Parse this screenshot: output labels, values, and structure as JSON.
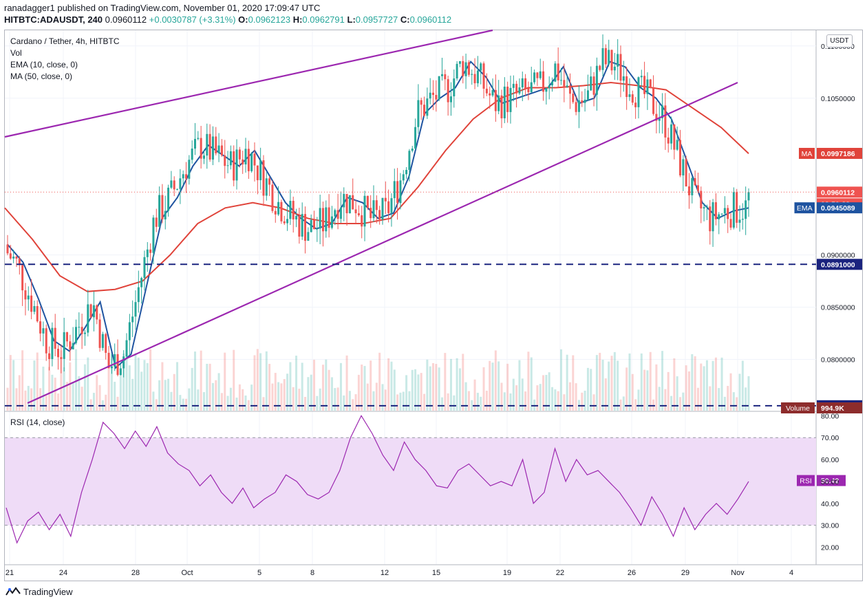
{
  "header": {
    "publisher_line": "ranadagger1 published on TradingView.com, November 01, 2020 17:09:47 UTC",
    "symbol": "HITBTC:ADAUSDT, 240",
    "price": "0.0960112",
    "change": "+0.0030787 (+3.31%)",
    "open_label": "O:",
    "open": "0.0962123",
    "high_label": "H:",
    "high": "0.0962791",
    "low_label": "L:",
    "low": "0.0957727",
    "close_label": "C:",
    "close": "0.0960112"
  },
  "legend": {
    "title": "Cardano / Tether, 4h, HITBTC",
    "vol": "Vol",
    "ema": "EMA (10, close, 0)",
    "ma": "MA (50, close, 0)",
    "rsi": "RSI (14, close)"
  },
  "currency_button": "USDT",
  "colors": {
    "up": "#26a69a",
    "down": "#ef5350",
    "ema": "#1e53a0",
    "ma": "#e0433a",
    "trendline": "#9c27b0",
    "support": "#1a237e",
    "rsi_line": "#9c27b0",
    "rsi_band": "#efdcf7",
    "grid": "#f0f3fa"
  },
  "footer": {
    "brand": "TradingView",
    "logo_icon": "tradingview-logo-icon"
  },
  "chart_data": [
    {
      "type": "candlestick",
      "title": "Cardano / Tether, 4h, HITBTC",
      "y_scale": [
        0.0751,
        0.1115
      ],
      "y_ticks": [
        "0.1100000",
        "0.1050000",
        "0.0900000",
        "0.0850000",
        "0.0800000"
      ],
      "x_ticks": [
        "21",
        "24",
        "28",
        "Oct",
        "5",
        "8",
        "12",
        "15",
        "19",
        "22",
        "26",
        "29",
        "Nov",
        "4"
      ],
      "price_labels": [
        {
          "name": "MA",
          "value": "0.0997186",
          "color": "#e0433a"
        },
        {
          "name": "",
          "value": "0.0960112",
          "color": "#ef5350"
        },
        {
          "name": "",
          "value": "02:50:23",
          "color": "#ef5350"
        },
        {
          "name": "EMA",
          "value": "0.0945089",
          "color": "#1e53a0"
        },
        {
          "name": "",
          "value": "0.0891000",
          "color": "#1a237e"
        },
        {
          "name": "",
          "value": "0.0755701",
          "color": "#1a237e"
        },
        {
          "name": "Volume",
          "value": "994.9K",
          "color": "#8d2c2c"
        }
      ],
      "support_levels": [
        0.0891,
        0.07557
      ],
      "trendlines": [
        {
          "name": "upper channel",
          "from": [
            "Sep 20",
            0.1044
          ],
          "to": [
            "Oct 17",
            0.1195
          ]
        },
        {
          "name": "lower channel",
          "from": [
            "Sep 21",
            0.0752
          ],
          "to": [
            "Oct 31",
            0.1103
          ]
        }
      ],
      "ema_path": [
        0.091,
        0.0893,
        0.0858,
        0.0818,
        0.0808,
        0.083,
        0.0855,
        0.0792,
        0.0805,
        0.087,
        0.0935,
        0.0955,
        0.0985,
        0.1005,
        0.0995,
        0.0985,
        0.1,
        0.0975,
        0.095,
        0.0935,
        0.0925,
        0.093,
        0.0955,
        0.095,
        0.0935,
        0.094,
        0.0975,
        0.1035,
        0.105,
        0.106,
        0.1085,
        0.107,
        0.1045,
        0.105,
        0.1055,
        0.106,
        0.108,
        0.1045,
        0.105,
        0.1085,
        0.108,
        0.106,
        0.105,
        0.103,
        0.099,
        0.095,
        0.0935,
        0.0942,
        0.0945
      ],
      "ma_path": [
        0.0945,
        0.0915,
        0.088,
        0.0865,
        0.0867,
        0.0875,
        0.09,
        0.093,
        0.0945,
        0.095,
        0.0945,
        0.0935,
        0.093,
        0.093,
        0.0935,
        0.0965,
        0.1,
        0.103,
        0.105,
        0.106,
        0.106,
        0.1062,
        0.1065,
        0.1062,
        0.1058,
        0.104,
        0.1022,
        0.0997
      ],
      "last_price": 0.0960112,
      "ema_last": 0.0945089,
      "ma_last": 0.0997186
    },
    {
      "type": "line",
      "title": "RSI (14, close)",
      "ylim": [
        12,
        82
      ],
      "y_ticks": [
        "80.00",
        "70.00",
        "60.00",
        "50.00",
        "40.00",
        "30.00",
        "20.00"
      ],
      "bands": [
        30,
        70
      ],
      "last_value": "50.42",
      "values": [
        38,
        22,
        32,
        36,
        28,
        35,
        25,
        45,
        60,
        77,
        72,
        65,
        73,
        66,
        75,
        63,
        58,
        55,
        48,
        53,
        45,
        40,
        47,
        38,
        42,
        45,
        53,
        50,
        44,
        42,
        45,
        55,
        70,
        80,
        72,
        62,
        55,
        68,
        60,
        55,
        48,
        47,
        55,
        58,
        53,
        48,
        50,
        48,
        60,
        40,
        45,
        65,
        50,
        60,
        53,
        55,
        50,
        45,
        38,
        30,
        43,
        35,
        25,
        38,
        28,
        35,
        40,
        35,
        42,
        50
      ]
    }
  ]
}
